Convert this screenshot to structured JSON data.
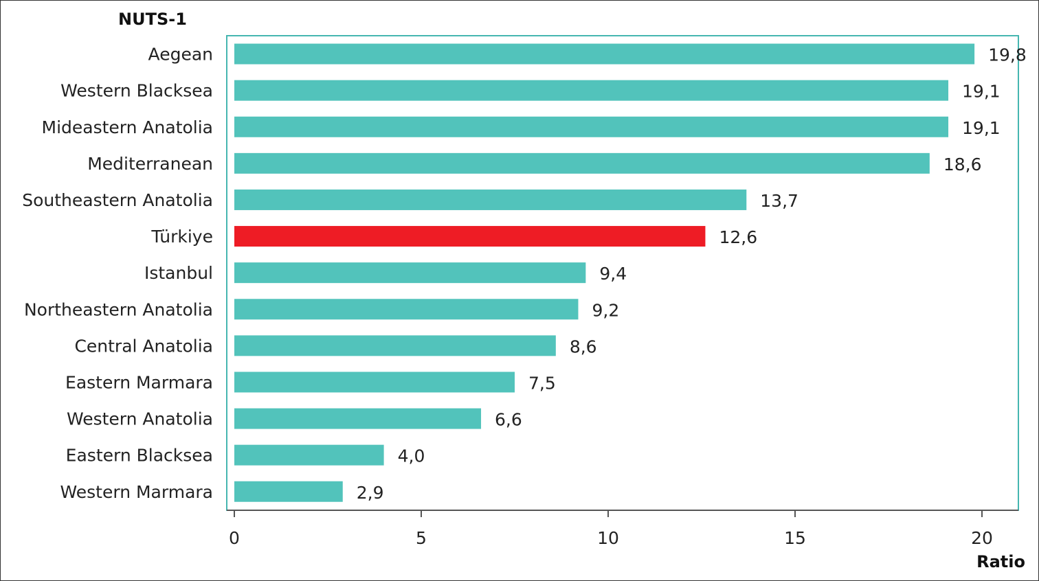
{
  "chart_data": {
    "type": "bar",
    "orientation": "horizontal",
    "category_axis_title": "NUTS-1",
    "value_axis_title": "Ratio",
    "categories": [
      "Aegean",
      "Western Blacksea",
      "Mideastern Anatolia",
      "Mediterranean",
      "Southeastern Anatolia",
      "Türkiye",
      "Istanbul",
      "Northeastern Anatolia",
      "Central Anatolia",
      "Eastern Marmara",
      "Western Anatolia",
      "Eastern Blacksea",
      "Western Marmara"
    ],
    "values": [
      19.8,
      19.1,
      19.1,
      18.6,
      13.7,
      12.6,
      9.4,
      9.2,
      8.6,
      7.5,
      6.6,
      4.0,
      2.9
    ],
    "value_labels": [
      "19,8",
      "19,1",
      "19,1",
      "18,6",
      "13,7",
      "12,6",
      "9,4",
      "9,2",
      "8,6",
      "7,5",
      "6,6",
      "4,0",
      "2,9"
    ],
    "xlim": [
      0,
      21
    ],
    "xticks": [
      "0",
      "5",
      "10",
      "15",
      "20"
    ],
    "xtick_values": [
      0,
      5,
      10,
      15,
      20
    ],
    "grid": false,
    "colors": {
      "default": "#52c3bb",
      "highlight": "#ee1c25",
      "frame": "#45b6b0",
      "axis": "#555555"
    },
    "highlight_category": "Türkiye"
  }
}
